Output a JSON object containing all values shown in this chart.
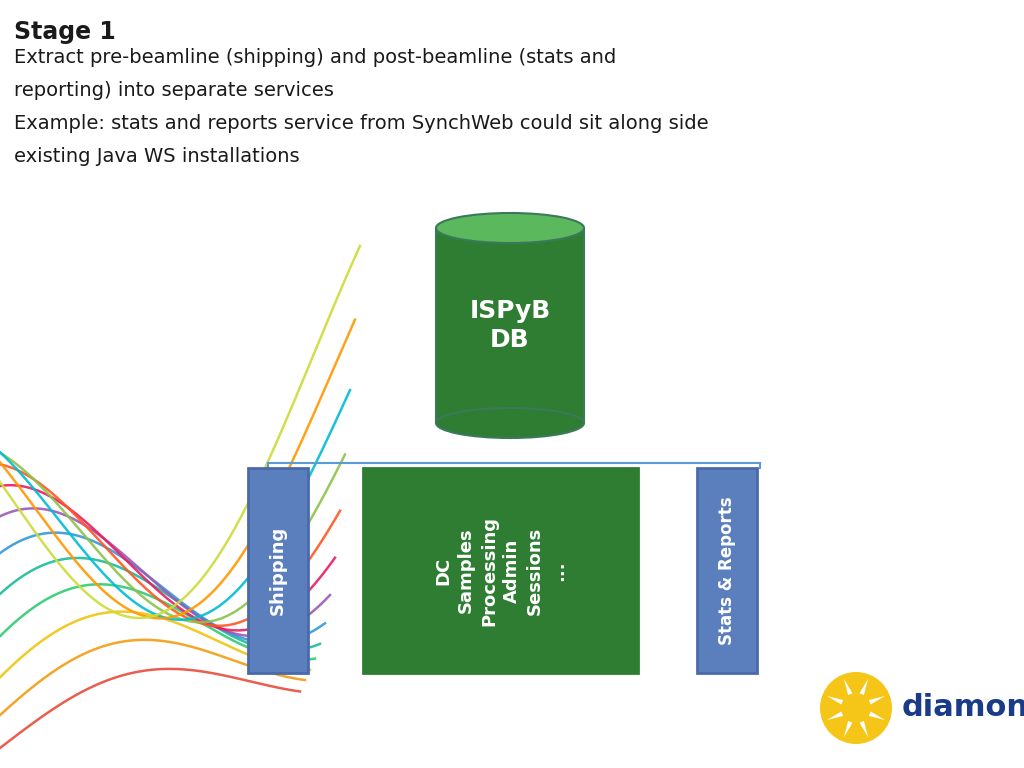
{
  "title_bold": "Stage 1",
  "subtitle_lines": [
    "Extract pre-beamline (shipping) and post-beamline (stats and",
    "reporting) into separate services",
    "Example: stats and reports service from SynchWeb could sit along side",
    "existing Java WS installations"
  ],
  "db_label": "ISPyB\nDB",
  "db_color_top": "#5cb85c",
  "db_color_body": "#2e7d32",
  "db_border_color": "#3a7a5a",
  "shipping_label": "Shipping",
  "shipping_color": "#5b7fbd",
  "shipping_border": "#4a6aaa",
  "core_label": "DC\nSamples\nProcessing\nAdmin\nSessions\n...",
  "core_color": "#2e7d32",
  "core_border": "#2e7d32",
  "stats_label": "Stats & Reports",
  "stats_color": "#5b7fbd",
  "stats_border": "#4a6aaa",
  "connector_color": "#5b9bd5",
  "arrow_color": "#5b9bd5",
  "bg_color": "#ffffff",
  "text_color": "#1a1a1a",
  "diamond_text_color": "#1a3a8a",
  "diamond_sun_color": "#f5c518",
  "fiber_colors": [
    "#e74c3c",
    "#f39c12",
    "#f1c40f",
    "#2ecc71",
    "#1abc9c",
    "#3498db",
    "#9b59b6",
    "#e91e63",
    "#ff5722",
    "#8bc34a",
    "#00bcd4",
    "#ff9800",
    "#cddc39",
    "#ffffff",
    "#aaaaaa"
  ]
}
